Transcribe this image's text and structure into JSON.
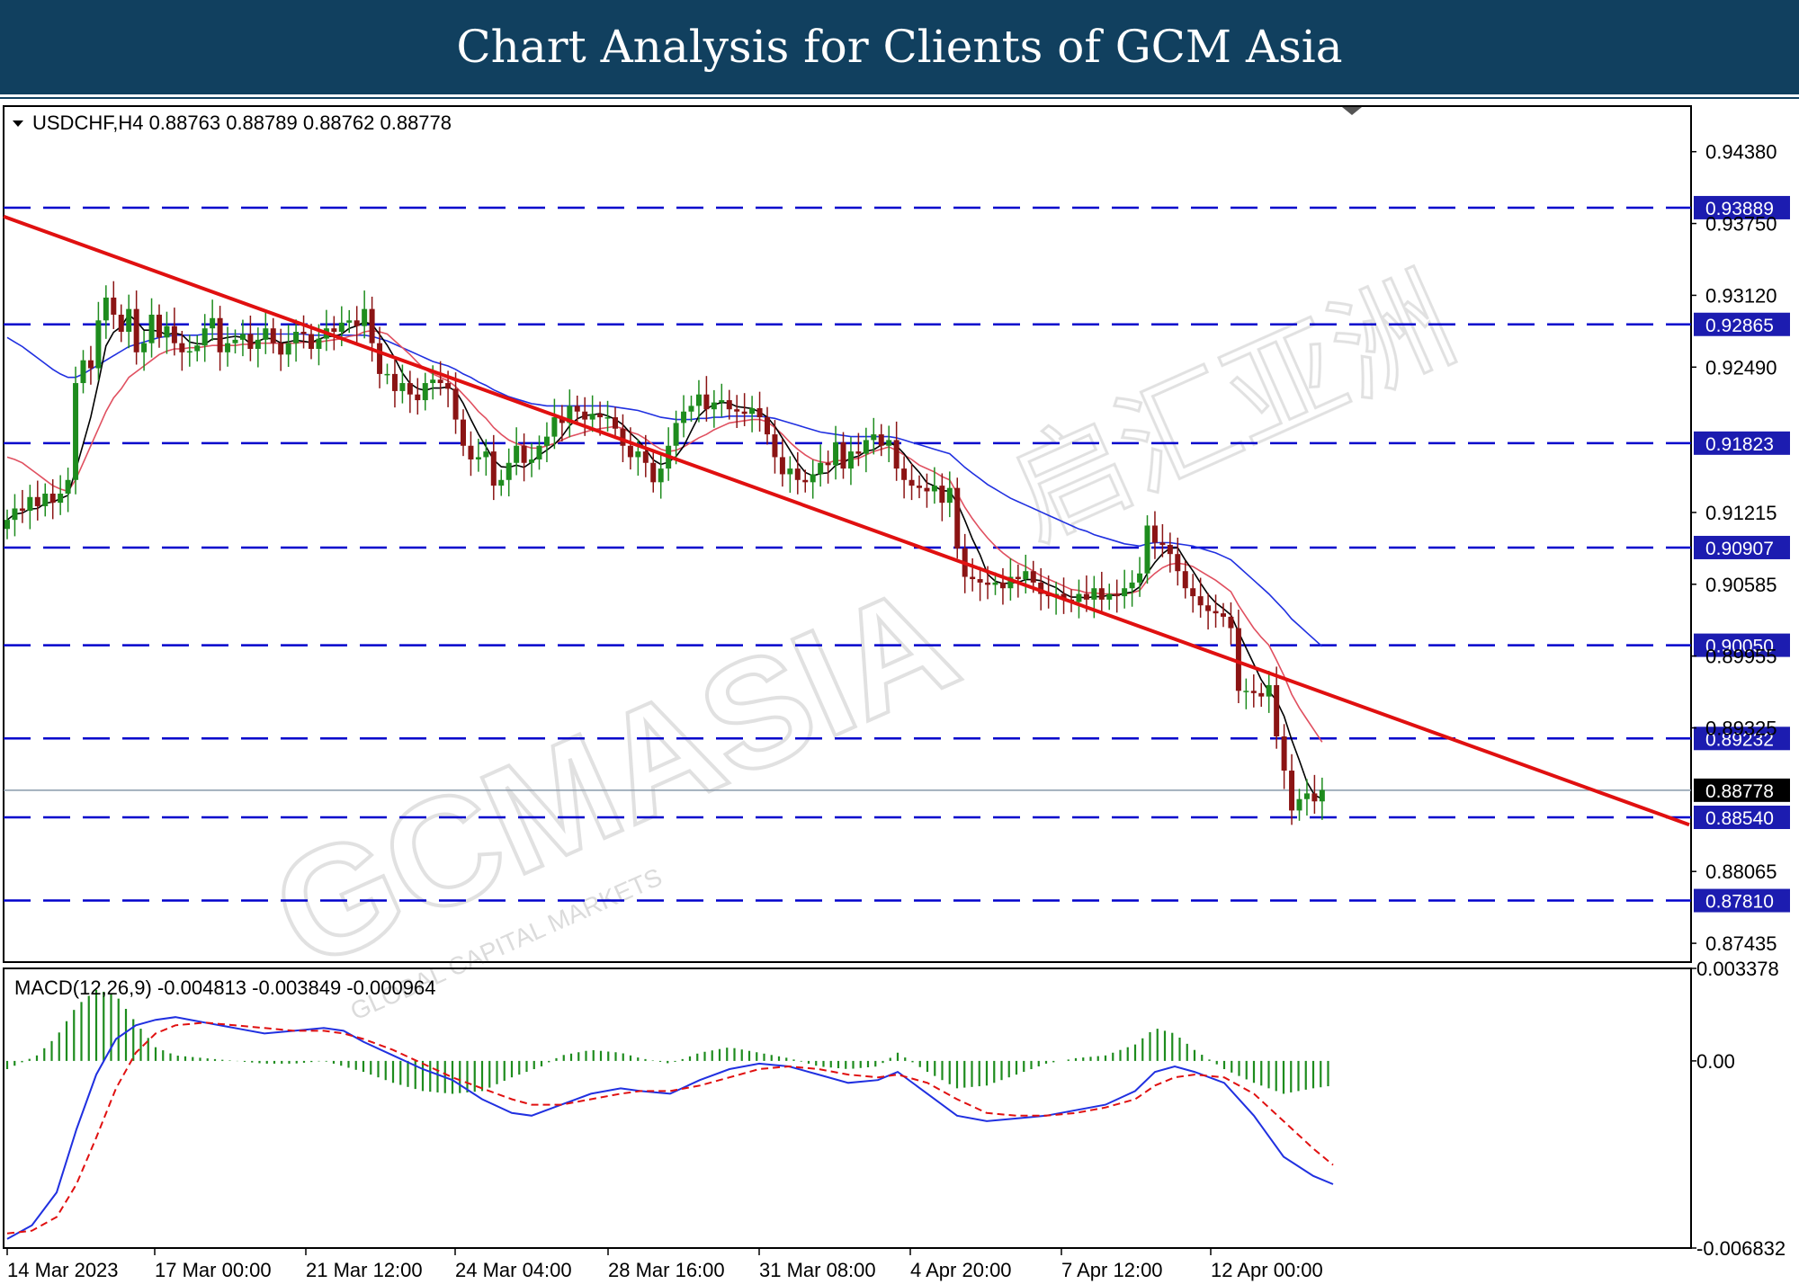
{
  "header": {
    "title": "Chart Analysis for Clients of GCM Asia"
  },
  "colors": {
    "header_bg": "#11405f",
    "level_line": "#0000cc",
    "trendline": "#e01010",
    "bull_candle": "#1e8c1e",
    "bear_candle": "#8b1414",
    "ma_fast": "#000000",
    "ma_mid": "#e05060",
    "ma_slow": "#2030e0",
    "macd_line": "#2030e0",
    "signal_line": "#e01010",
    "hist": "#1e8c1e"
  },
  "watermark": {
    "text": "GCMASIA",
    "sub": "GLOBAL CAPITAL MARKETS",
    "cjk": "启汇亚洲"
  },
  "chart_data": [
    {
      "type": "candlestick",
      "legend": "USDCHF,H4  0.88763 0.88789 0.88762 0.88778",
      "ylim": [
        0.8727,
        0.9478
      ],
      "y_ticks": [
        "0.94380",
        "0.93750",
        "0.93120",
        "0.92490",
        "0.91215",
        "0.90585",
        "0.89955",
        "0.89325",
        "0.88065",
        "0.87435"
      ],
      "x_ticks": [
        "14 Mar 2023",
        "17 Mar 00:00",
        "21 Mar 12:00",
        "24 Mar 04:00",
        "28 Mar 16:00",
        "31 Mar 08:00",
        "4 Apr 20:00",
        "7 Apr 12:00",
        "12 Apr 00:00"
      ],
      "level_lines": [
        "0.93889",
        "0.92865",
        "0.91823",
        "0.90907",
        "0.90050",
        "0.89232",
        "0.88540",
        "0.87810"
      ],
      "current_price": "0.88778",
      "trendline": [
        {
          "i": 0,
          "y": 0.938
        },
        {
          "i": 165,
          "y": 0.8983
        }
      ],
      "closes": [
        0.9115,
        0.9125,
        0.9123,
        0.9135,
        0.9127,
        0.9138,
        0.913,
        0.9138,
        0.915,
        0.9235,
        0.9255,
        0.9248,
        0.929,
        0.931,
        0.9295,
        0.928,
        0.93,
        0.9262,
        0.927,
        0.9295,
        0.9275,
        0.9285,
        0.927,
        0.9262,
        0.9263,
        0.9268,
        0.9283,
        0.9292,
        0.9262,
        0.927,
        0.9273,
        0.9278,
        0.9265,
        0.9273,
        0.9283,
        0.927,
        0.926,
        0.927,
        0.928,
        0.9278,
        0.9265,
        0.9274,
        0.9283,
        0.928,
        0.9288,
        0.929,
        0.9285,
        0.93,
        0.927,
        0.9243,
        0.9243,
        0.9228,
        0.9235,
        0.9225,
        0.922,
        0.9235,
        0.9238,
        0.9235,
        0.923,
        0.9203,
        0.918,
        0.9168,
        0.917,
        0.9175,
        0.9145,
        0.915,
        0.9165,
        0.918,
        0.9165,
        0.9168,
        0.918,
        0.9188,
        0.9205,
        0.92,
        0.9215,
        0.921,
        0.9203,
        0.9208,
        0.9205,
        0.9205,
        0.9195,
        0.918,
        0.917,
        0.9175,
        0.9165,
        0.9148,
        0.916,
        0.918,
        0.92,
        0.921,
        0.9215,
        0.9225,
        0.9212,
        0.9218,
        0.922,
        0.9212,
        0.921,
        0.9208,
        0.9213,
        0.9205,
        0.919,
        0.917,
        0.9155,
        0.916,
        0.915,
        0.9148,
        0.9155,
        0.9165,
        0.9163,
        0.9183,
        0.916,
        0.9175,
        0.9173,
        0.9185,
        0.919,
        0.918,
        0.9185,
        0.916,
        0.915,
        0.9145,
        0.9143,
        0.914,
        0.9145,
        0.913,
        0.9143,
        0.909,
        0.9065,
        0.9063,
        0.906,
        0.9058,
        0.906,
        0.9055,
        0.9065,
        0.9063,
        0.907,
        0.906,
        0.905,
        0.9048,
        0.905,
        0.9045,
        0.9043,
        0.905,
        0.9045,
        0.9055,
        0.9045,
        0.905,
        0.9048,
        0.9055,
        0.906,
        0.9068,
        0.911,
        0.9095,
        0.9093,
        0.9085,
        0.907,
        0.9055,
        0.9048,
        0.904,
        0.9035,
        0.9033,
        0.903,
        0.902,
        0.8965,
        0.8965,
        0.8963,
        0.896,
        0.897,
        0.8925,
        0.8895,
        0.886,
        0.887,
        0.8875,
        0.8868,
        0.8878
      ],
      "ma_fast_note": "black line tracks recent closes",
      "ma_mid": [
        0.917,
        0.9168,
        0.9165,
        0.916,
        0.9155,
        0.915,
        0.9145,
        0.9142,
        0.914,
        0.915,
        0.9165,
        0.918,
        0.9195,
        0.921,
        0.9222,
        0.923,
        0.924,
        0.9245,
        0.925,
        0.9255,
        0.926,
        0.9263,
        0.9265,
        0.9265,
        0.9266,
        0.9266,
        0.9267,
        0.9268,
        0.9268,
        0.9268,
        0.9268,
        0.9269,
        0.9269,
        0.927,
        0.927,
        0.927,
        0.927,
        0.927,
        0.927,
        0.9271,
        0.9271,
        0.9271,
        0.9272,
        0.9273,
        0.9274,
        0.9276,
        0.9277,
        0.928,
        0.9281,
        0.928,
        0.9278,
        0.9272,
        0.9266,
        0.926,
        0.9253,
        0.9247,
        0.9243,
        0.924,
        0.9237,
        0.9232,
        0.9225,
        0.9218,
        0.921,
        0.9204,
        0.9196,
        0.919,
        0.9185,
        0.9182,
        0.918,
        0.9178,
        0.9178,
        0.918,
        0.9182,
        0.9185,
        0.9188,
        0.919,
        0.9192,
        0.9194,
        0.9195,
        0.9196,
        0.9197,
        0.9195,
        0.9192,
        0.919,
        0.9186,
        0.9181,
        0.9177,
        0.9175,
        0.9176,
        0.9179,
        0.9183,
        0.9187,
        0.919,
        0.9194,
        0.9197,
        0.92,
        0.9201,
        0.9202,
        0.9203,
        0.9203,
        0.9201,
        0.9196,
        0.919,
        0.9183,
        0.9177,
        0.9172,
        0.9168,
        0.9166,
        0.9165,
        0.9167,
        0.9167,
        0.9168,
        0.9169,
        0.9172,
        0.9175,
        0.9177,
        0.9179,
        0.9176,
        0.9172,
        0.9168,
        0.9163,
        0.916,
        0.9157,
        0.9153,
        0.915,
        0.9138,
        0.9126,
        0.9116,
        0.9107,
        0.9099,
        0.9092,
        0.9086,
        0.9081,
        0.9077,
        0.9074,
        0.907,
        0.9066,
        0.9063,
        0.906,
        0.9057,
        0.9054,
        0.9053,
        0.9051,
        0.9051,
        0.905,
        0.905,
        0.905,
        0.905,
        0.9051,
        0.9053,
        0.9062,
        0.9068,
        0.9073,
        0.9076,
        0.9077,
        0.9076,
        0.9074,
        0.907,
        0.9066,
        0.9062,
        0.9057,
        0.9052,
        0.904,
        0.903,
        0.902,
        0.9012,
        0.9005,
        0.8992,
        0.8978,
        0.8962,
        0.895,
        0.894,
        0.893,
        0.892
      ],
      "ma_slow": [
        0.9275,
        0.9271,
        0.9267,
        0.9262,
        0.9257,
        0.9252,
        0.9247,
        0.9243,
        0.924,
        0.924,
        0.9243,
        0.9247,
        0.9251,
        0.9255,
        0.9259,
        0.9263,
        0.9267,
        0.9269,
        0.9271,
        0.9273,
        0.9275,
        0.9276,
        0.9277,
        0.9277,
        0.9277,
        0.9277,
        0.9278,
        0.9278,
        0.9278,
        0.9278,
        0.9278,
        0.9278,
        0.9278,
        0.9278,
        0.9278,
        0.9278,
        0.9278,
        0.9278,
        0.9278,
        0.9278,
        0.9277,
        0.9277,
        0.9277,
        0.9277,
        0.9277,
        0.9277,
        0.9277,
        0.9277,
        0.9276,
        0.9274,
        0.9272,
        0.9269,
        0.9266,
        0.9263,
        0.926,
        0.9257,
        0.9254,
        0.9252,
        0.925,
        0.9247,
        0.9243,
        0.924,
        0.9236,
        0.9233,
        0.9229,
        0.9226,
        0.9223,
        0.9221,
        0.9219,
        0.9217,
        0.9216,
        0.9215,
        0.9215,
        0.9215,
        0.9215,
        0.9215,
        0.9215,
        0.9215,
        0.9215,
        0.9215,
        0.9214,
        0.9213,
        0.9212,
        0.9211,
        0.9209,
        0.9207,
        0.9205,
        0.9204,
        0.9203,
        0.9203,
        0.9203,
        0.9204,
        0.9204,
        0.9205,
        0.9205,
        0.9206,
        0.9206,
        0.9206,
        0.9206,
        0.9206,
        0.9205,
        0.9204,
        0.9202,
        0.92,
        0.9198,
        0.9196,
        0.9194,
        0.9192,
        0.9191,
        0.919,
        0.9189,
        0.9188,
        0.9188,
        0.9188,
        0.9188,
        0.9188,
        0.9188,
        0.9187,
        0.9185,
        0.9183,
        0.9181,
        0.9179,
        0.9177,
        0.9175,
        0.9173,
        0.9167,
        0.9161,
        0.9156,
        0.9151,
        0.9146,
        0.9142,
        0.9138,
        0.9134,
        0.9131,
        0.9128,
        0.9125,
        0.9122,
        0.9119,
        0.9116,
        0.9113,
        0.911,
        0.9107,
        0.9105,
        0.9102,
        0.91,
        0.9098,
        0.9096,
        0.9094,
        0.9093,
        0.9092,
        0.9094,
        0.9095,
        0.9095,
        0.9095,
        0.9094,
        0.9093,
        0.9092,
        0.909,
        0.9088,
        0.9086,
        0.9083,
        0.908,
        0.9074,
        0.9068,
        0.9062,
        0.9056,
        0.905,
        0.9043,
        0.9036,
        0.9028,
        0.9022,
        0.9016,
        0.901,
        0.9004
      ]
    },
    {
      "type": "macd",
      "legend": "MACD(12,26,9) -0.004813 -0.003849 -0.000964",
      "ylim": [
        -0.006832,
        0.003378
      ],
      "y_ticks": [
        "0.003378",
        "0.00",
        "-0.006832"
      ],
      "macd_points": [
        [
          0,
          -0.0065
        ],
        [
          5,
          -0.006
        ],
        [
          10,
          -0.0048
        ],
        [
          14,
          -0.0025
        ],
        [
          18,
          -0.0005
        ],
        [
          22,
          0.0008
        ],
        [
          26,
          0.0013
        ],
        [
          30,
          0.0015
        ],
        [
          34,
          0.0016
        ],
        [
          40,
          0.0014
        ],
        [
          46,
          0.0012
        ],
        [
          52,
          0.001
        ],
        [
          58,
          0.0011
        ],
        [
          64,
          0.0012
        ],
        [
          68,
          0.0011
        ],
        [
          72,
          0.0007
        ],
        [
          78,
          0.0002
        ],
        [
          84,
          -0.0003
        ],
        [
          90,
          -0.0007
        ],
        [
          96,
          -0.0014
        ],
        [
          102,
          -0.0019
        ],
        [
          106,
          -0.002
        ],
        [
          112,
          -0.0016
        ],
        [
          118,
          -0.0012
        ],
        [
          124,
          -0.001
        ],
        [
          128,
          -0.0011
        ],
        [
          134,
          -0.0012
        ],
        [
          140,
          -0.0007
        ],
        [
          146,
          -0.0003
        ],
        [
          152,
          -0.0001
        ],
        [
          158,
          -0.0002
        ],
        [
          164,
          -0.0005
        ],
        [
          170,
          -0.0008
        ],
        [
          176,
          -0.0007
        ],
        [
          180,
          -0.0004
        ],
        [
          186,
          -0.0012
        ],
        [
          192,
          -0.002
        ],
        [
          198,
          -0.0022
        ],
        [
          204,
          -0.0021
        ],
        [
          210,
          -0.002
        ],
        [
          216,
          -0.0018
        ],
        [
          222,
          -0.0016
        ],
        [
          228,
          -0.0011
        ],
        [
          232,
          -0.0004
        ],
        [
          236,
          -0.0002
        ],
        [
          240,
          -0.0004
        ],
        [
          246,
          -0.0008
        ],
        [
          252,
          -0.002
        ],
        [
          258,
          -0.0035
        ],
        [
          264,
          -0.0042
        ],
        [
          268,
          -0.0045
        ]
      ],
      "signal_points": [
        [
          0,
          -0.0063
        ],
        [
          5,
          -0.0062
        ],
        [
          10,
          -0.0057
        ],
        [
          14,
          -0.0045
        ],
        [
          18,
          -0.0028
        ],
        [
          22,
          -0.001
        ],
        [
          26,
          0.0003
        ],
        [
          30,
          0.001
        ],
        [
          34,
          0.0013
        ],
        [
          40,
          0.0014
        ],
        [
          46,
          0.0013
        ],
        [
          52,
          0.0012
        ],
        [
          58,
          0.0011
        ],
        [
          64,
          0.0011
        ],
        [
          68,
          0.001
        ],
        [
          72,
          0.0008
        ],
        [
          78,
          0.0004
        ],
        [
          84,
          -0.0001
        ],
        [
          90,
          -0.0006
        ],
        [
          96,
          -0.001
        ],
        [
          102,
          -0.0014
        ],
        [
          106,
          -0.0016
        ],
        [
          112,
          -0.0016
        ],
        [
          118,
          -0.0014
        ],
        [
          124,
          -0.0012
        ],
        [
          128,
          -0.0011
        ],
        [
          134,
          -0.0011
        ],
        [
          140,
          -0.0009
        ],
        [
          146,
          -0.0006
        ],
        [
          152,
          -0.0003
        ],
        [
          158,
          -0.0002
        ],
        [
          164,
          -0.0003
        ],
        [
          170,
          -0.0005
        ],
        [
          176,
          -0.0006
        ],
        [
          180,
          -0.0005
        ],
        [
          186,
          -0.0008
        ],
        [
          192,
          -0.0014
        ],
        [
          198,
          -0.0019
        ],
        [
          204,
          -0.002
        ],
        [
          210,
          -0.002
        ],
        [
          216,
          -0.0019
        ],
        [
          222,
          -0.0017
        ],
        [
          228,
          -0.0014
        ],
        [
          232,
          -0.0009
        ],
        [
          236,
          -0.0006
        ],
        [
          240,
          -0.0005
        ],
        [
          246,
          -0.0006
        ],
        [
          252,
          -0.0012
        ],
        [
          258,
          -0.0022
        ],
        [
          264,
          -0.0032
        ],
        [
          268,
          -0.0038
        ]
      ],
      "histogram_points": [
        [
          0,
          -0.0003
        ],
        [
          6,
          0.0002
        ],
        [
          10,
          0.0009
        ],
        [
          14,
          0.002
        ],
        [
          18,
          0.0026
        ],
        [
          22,
          0.0024
        ],
        [
          26,
          0.0014
        ],
        [
          30,
          0.0005
        ],
        [
          34,
          0.0002
        ],
        [
          40,
          0.0001
        ],
        [
          46,
          0.0
        ],
        [
          52,
          -0.0001
        ],
        [
          58,
          -0.0001
        ],
        [
          64,
          0.0
        ],
        [
          68,
          -0.0002
        ],
        [
          72,
          -0.0004
        ],
        [
          78,
          -0.0008
        ],
        [
          84,
          -0.0011
        ],
        [
          90,
          -0.0012
        ],
        [
          96,
          -0.0011
        ],
        [
          102,
          -0.0006
        ],
        [
          108,
          -0.0002
        ],
        [
          112,
          0.0002
        ],
        [
          118,
          0.0004
        ],
        [
          124,
          0.0003
        ],
        [
          128,
          0.0001
        ],
        [
          134,
          -0.0001
        ],
        [
          140,
          0.0003
        ],
        [
          146,
          0.0005
        ],
        [
          152,
          0.0003
        ],
        [
          158,
          0.0001
        ],
        [
          164,
          -0.0002
        ],
        [
          170,
          -0.0003
        ],
        [
          176,
          -0.0002
        ],
        [
          180,
          0.0003
        ],
        [
          186,
          -0.0004
        ],
        [
          192,
          -0.001
        ],
        [
          198,
          -0.0009
        ],
        [
          204,
          -0.0005
        ],
        [
          210,
          -0.0001
        ],
        [
          216,
          0.0001
        ],
        [
          222,
          0.0002
        ],
        [
          228,
          0.0006
        ],
        [
          232,
          0.0012
        ],
        [
          236,
          0.001
        ],
        [
          240,
          0.0004
        ],
        [
          246,
          -0.0003
        ],
        [
          252,
          -0.0008
        ],
        [
          258,
          -0.0012
        ],
        [
          264,
          -0.001
        ],
        [
          268,
          -0.0009
        ]
      ]
    }
  ]
}
